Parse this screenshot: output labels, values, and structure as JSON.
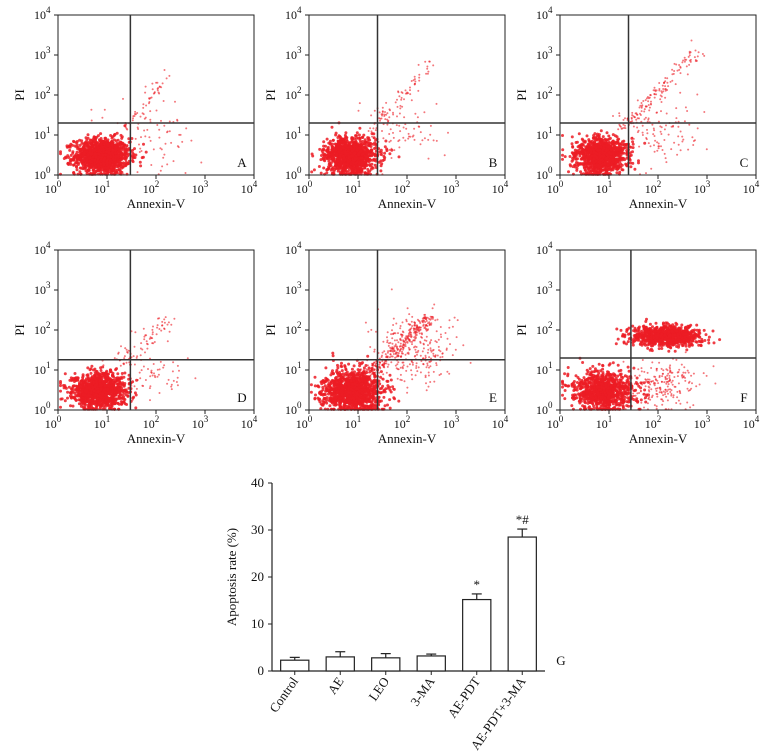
{
  "chart_data": [
    {
      "type": "scatter",
      "panel": "A",
      "title": "",
      "xlabel": "Annexin-V",
      "ylabel": "PI",
      "xscale": "log",
      "yscale": "log",
      "xlim": [
        1,
        10000
      ],
      "ylim": [
        1,
        10000
      ],
      "quadrant_gates": {
        "x": 30,
        "y": 20
      },
      "clusters": [
        {
          "name": "live",
          "center": [
            8,
            3
          ],
          "spread": [
            0.28,
            0.22
          ],
          "count": 1300
        },
        {
          "name": "diagonal",
          "from": [
            20,
            12
          ],
          "to": [
            160,
            300
          ],
          "count": 45
        },
        {
          "name": "late-scatter",
          "center": [
            70,
            10
          ],
          "spread": [
            0.45,
            0.45
          ],
          "count": 70
        }
      ]
    },
    {
      "type": "scatter",
      "panel": "B",
      "title": "",
      "xlabel": "Annexin-V",
      "ylabel": "PI",
      "xscale": "log",
      "yscale": "log",
      "xlim": [
        1,
        10000
      ],
      "ylim": [
        1,
        10000
      ],
      "quadrant_gates": {
        "x": 25,
        "y": 20
      },
      "clusters": [
        {
          "name": "live",
          "center": [
            7,
            3
          ],
          "spread": [
            0.26,
            0.22
          ],
          "count": 1200
        },
        {
          "name": "diagonal",
          "from": [
            18,
            12
          ],
          "to": [
            300,
            600
          ],
          "count": 70
        },
        {
          "name": "late-scatter",
          "center": [
            80,
            12
          ],
          "spread": [
            0.4,
            0.45
          ],
          "count": 80
        }
      ]
    },
    {
      "type": "scatter",
      "panel": "C",
      "title": "",
      "xlabel": "Annexin-V",
      "ylabel": "PI",
      "xscale": "log",
      "yscale": "log",
      "xlim": [
        1,
        10000
      ],
      "ylim": [
        1,
        10000
      ],
      "quadrant_gates": {
        "x": 25,
        "y": 20
      },
      "clusters": [
        {
          "name": "live",
          "center": [
            7,
            3
          ],
          "spread": [
            0.26,
            0.22
          ],
          "count": 1100
        },
        {
          "name": "diagonal",
          "from": [
            20,
            15
          ],
          "to": [
            700,
            1500
          ],
          "count": 130
        },
        {
          "name": "late-scatter",
          "center": [
            120,
            15
          ],
          "spread": [
            0.45,
            0.45
          ],
          "count": 110
        }
      ]
    },
    {
      "type": "scatter",
      "panel": "D",
      "title": "",
      "xlabel": "Annexin-V",
      "ylabel": "PI",
      "xscale": "log",
      "yscale": "log",
      "xlim": [
        1,
        10000
      ],
      "ylim": [
        1,
        10000
      ],
      "quadrant_gates": {
        "x": 30,
        "y": 18
      },
      "clusters": [
        {
          "name": "live",
          "center": [
            7,
            3
          ],
          "spread": [
            0.27,
            0.22
          ],
          "count": 1200
        },
        {
          "name": "diagonal",
          "from": [
            22,
            15
          ],
          "to": [
            200,
            200
          ],
          "count": 70
        },
        {
          "name": "late-scatter",
          "center": [
            80,
            10
          ],
          "spread": [
            0.4,
            0.4
          ],
          "count": 70
        }
      ]
    },
    {
      "type": "scatter",
      "panel": "E",
      "title": "",
      "xlabel": "Annexin-V",
      "ylabel": "PI",
      "xscale": "log",
      "yscale": "log",
      "xlim": [
        1,
        10000
      ],
      "ylim": [
        1,
        10000
      ],
      "quadrant_gates": {
        "x": 25,
        "y": 18
      },
      "clusters": [
        {
          "name": "live",
          "center": [
            8,
            3
          ],
          "spread": [
            0.3,
            0.25
          ],
          "count": 1300
        },
        {
          "name": "diagonal",
          "from": [
            10,
            5
          ],
          "to": [
            300,
            200
          ],
          "count": 300
        },
        {
          "name": "late-scatter",
          "center": [
            150,
            30
          ],
          "spread": [
            0.4,
            0.45
          ],
          "count": 250
        }
      ]
    },
    {
      "type": "scatter",
      "panel": "F",
      "title": "",
      "xlabel": "Annexin-V",
      "ylabel": "PI",
      "xscale": "log",
      "yscale": "log",
      "xlim": [
        1,
        10000
      ],
      "ylim": [
        1,
        10000
      ],
      "quadrant_gates": {
        "x": 28,
        "y": 20
      },
      "clusters": [
        {
          "name": "live",
          "center": [
            8,
            3
          ],
          "spread": [
            0.3,
            0.25
          ],
          "count": 1000
        },
        {
          "name": "late-apoptotic",
          "center": [
            150,
            70
          ],
          "spread": [
            0.35,
            0.13
          ],
          "count": 900
        },
        {
          "name": "early-apoptotic",
          "center": [
            100,
            4
          ],
          "spread": [
            0.4,
            0.3
          ],
          "count": 220
        }
      ]
    },
    {
      "type": "bar",
      "panel": "G",
      "title": "",
      "xlabel": "",
      "ylabel": "Apoptosis rate (%)",
      "ylim": [
        0,
        40
      ],
      "yticks": [
        0,
        10,
        20,
        30,
        40
      ],
      "categories": [
        "Control",
        "AE",
        "LEO",
        "3-MA",
        "AE-PDT",
        "AE-PDT+3-MA"
      ],
      "values": [
        2.3,
        3.0,
        2.8,
        3.2,
        15.2,
        28.5
      ],
      "errors": [
        0.6,
        1.1,
        0.9,
        0.4,
        1.2,
        1.7
      ],
      "annotations": [
        "",
        "",
        "",
        "",
        "*",
        "*#"
      ]
    }
  ],
  "panel_letters": [
    "A",
    "B",
    "C",
    "D",
    "E",
    "F",
    "G"
  ],
  "colors": {
    "dots": "#ec1c24",
    "axes": "#222222",
    "gates": "#333333",
    "bars": "#ffffff"
  }
}
